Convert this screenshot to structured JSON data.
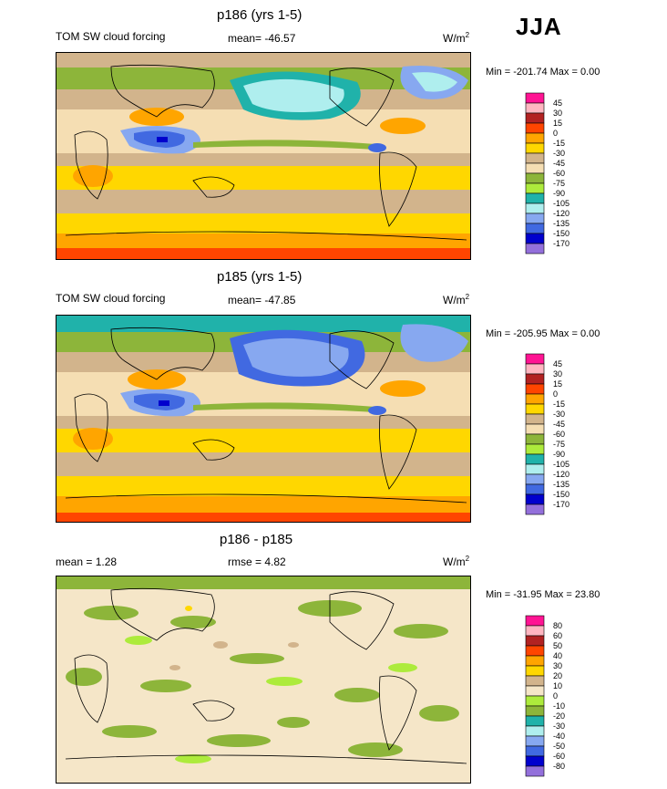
{
  "season": "JJA",
  "colors": {
    "ocean_bg": "#F5E6C8",
    "coast": "#000000"
  },
  "panels": [
    {
      "title": "p186 (yrs 1-5)",
      "left_label": "TOM SW cloud forcing",
      "mean_label": "mean= -46.57",
      "units_base": "W/m",
      "units_sup": "2",
      "minmax": "Min = -201.74 Max =   0.00",
      "colorbar": {
        "labels": [
          "45",
          "30",
          "15",
          "0",
          "-15",
          "-30",
          "-45",
          "-60",
          "-75",
          "-90",
          "-105",
          "-120",
          "-135",
          "-150",
          "-170"
        ],
        "colors": [
          "#FF1493",
          "#FFB6C1",
          "#B22222",
          "#FF4500",
          "#FFA500",
          "#FFD700",
          "#D2B48C",
          "#F5DEB3",
          "#8DB53A",
          "#ADEB3C",
          "#20B2AA",
          "#AFEEEE",
          "#87A8F0",
          "#4169E1",
          "#0000CD",
          "#9370DB"
        ]
      }
    },
    {
      "title": "p185 (yrs 1-5)",
      "left_label": "TOM SW cloud forcing",
      "mean_label": "mean= -47.85",
      "units_base": "W/m",
      "units_sup": "2",
      "minmax": "Min = -205.95 Max =   0.00",
      "colorbar": {
        "labels": [
          "45",
          "30",
          "15",
          "0",
          "-15",
          "-30",
          "-45",
          "-60",
          "-75",
          "-90",
          "-105",
          "-120",
          "-135",
          "-150",
          "-170"
        ],
        "colors": [
          "#FF1493",
          "#FFB6C1",
          "#B22222",
          "#FF4500",
          "#FFA500",
          "#FFD700",
          "#D2B48C",
          "#F5DEB3",
          "#8DB53A",
          "#ADEB3C",
          "#20B2AA",
          "#AFEEEE",
          "#87A8F0",
          "#4169E1",
          "#0000CD",
          "#9370DB"
        ]
      }
    },
    {
      "title": "p186 - p185",
      "mean_label": "mean =   1.28",
      "rmse_label": "rmse =   4.82",
      "units_base": "W/m",
      "units_sup": "2",
      "minmax": "Min = -31.95 Max =  23.80",
      "colorbar": {
        "labels": [
          "80",
          "60",
          "50",
          "40",
          "30",
          "20",
          "10",
          "0",
          "-10",
          "-20",
          "-30",
          "-40",
          "-50",
          "-60",
          "-80"
        ],
        "colors": [
          "#FF1493",
          "#FFB6C1",
          "#B22222",
          "#FF4500",
          "#FFA500",
          "#FFD700",
          "#D2B48C",
          "#F5E6C8",
          "#ADEB3C",
          "#8DB53A",
          "#20B2AA",
          "#AFEEEE",
          "#87A8F0",
          "#4169E1",
          "#0000CD",
          "#9370DB"
        ]
      }
    }
  ],
  "chart_data": [
    {
      "type": "heatmap",
      "title": "p186 (yrs 1-5)",
      "subtitle": "TOM SW cloud forcing",
      "units": "W/m2",
      "mean": -46.57,
      "min": -201.74,
      "max": 0.0,
      "levels": [
        45,
        30,
        15,
        0,
        -15,
        -30,
        -45,
        -60,
        -75,
        -90,
        -105,
        -120,
        -135,
        -150,
        -170
      ]
    },
    {
      "type": "heatmap",
      "title": "p185 (yrs 1-5)",
      "subtitle": "TOM SW cloud forcing",
      "units": "W/m2",
      "mean": -47.85,
      "min": -205.95,
      "max": 0.0,
      "levels": [
        45,
        30,
        15,
        0,
        -15,
        -30,
        -45,
        -60,
        -75,
        -90,
        -105,
        -120,
        -135,
        -150,
        -170
      ]
    },
    {
      "type": "heatmap",
      "title": "p186 - p185",
      "units": "W/m2",
      "mean": 1.28,
      "rmse": 4.82,
      "min": -31.95,
      "max": 23.8,
      "levels": [
        80,
        60,
        50,
        40,
        30,
        20,
        10,
        0,
        -10,
        -20,
        -30,
        -40,
        -50,
        -60,
        -80
      ]
    }
  ]
}
